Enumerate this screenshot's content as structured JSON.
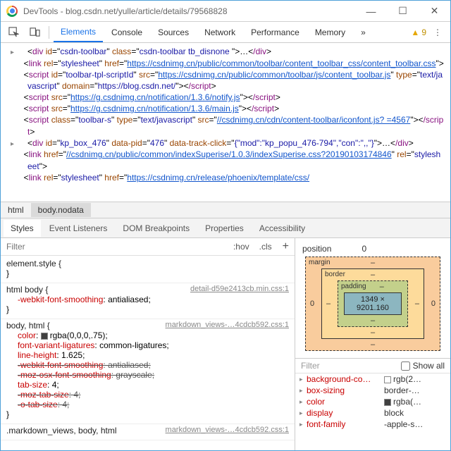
{
  "window": {
    "title": "DevTools - blog.csdn.net/yulle/article/details/79568828"
  },
  "winbtns": {
    "min": "—",
    "max": "☐",
    "close": "✕"
  },
  "maintabs": [
    "Elements",
    "Console",
    "Sources",
    "Network",
    "Performance",
    "Memory"
  ],
  "maintabs_more": "»",
  "warn_count": "9",
  "dom_lines": [
    {
      "tri": true,
      "html": "<<span class='p'>div</span> <span class='a'>id</span>=\"<span class='v'>csdn-toolbar</span>\" <span class='a'>class</span>=\"<span class='v'>csdn-toolbar tb_disnone</span> \">…<<span class='p'>/div</span>>"
    },
    {
      "tri": false,
      "html": "<<span class='p'>link</span> <span class='a'>rel</span>=\"<span class='v'>stylesheet</span>\" <span class='a'>href</span>=\"<span class='l'>https://csdnimg.cn/public/common/toolbar/content_toolbar_css/content_toolbar.css</span>\">"
    },
    {
      "tri": false,
      "html": "<<span class='p'>script</span> <span class='a'>id</span>=\"<span class='v'>toolbar-tpl-scriptId</span>\" <span class='a'>src</span>=\"<span class='l'>https://csdnimg.cn/public/common/toolbar/js/content_toolbar.js</span>\" <span class='a'>type</span>=\"<span class='v'>text/javascript</span>\" <span class='a'>domain</span>=\"<span class='v'>https://blog.csdn.net/</span>\"><<span class='p'>/script</span>>"
    },
    {
      "tri": false,
      "html": "<<span class='p'>script</span> <span class='a'>src</span>=\"<span class='l'>https://g.csdnimg.cn/notification/1.3.6/notify.js</span>\"><<span class='p'>/script</span>>"
    },
    {
      "tri": false,
      "html": "<<span class='p'>script</span> <span class='a'>src</span>=\"<span class='l'>https://g.csdnimg.cn/notification/1.3.6/main.js</span>\"><<span class='p'>/script</span>>"
    },
    {
      "tri": false,
      "html": "<<span class='p'>script</span> <span class='a'>class</span>=\"<span class='v'>toolbar-s</span>\" <span class='a'>type</span>=\"<span class='v'>text/javascript</span>\" <span class='a'>src</span>=\"<span class='l'>//csdnimg.cn/cdn/content-toolbar/iconfont.js? =4567</span>\"><<span class='p'>/script</span>>"
    },
    {
      "tri": true,
      "html": "<<span class='p'>div</span> <span class='a'>id</span>=\"<span class='v'>kp_box_476</span>\" <span class='a'>data-pid</span>=\"<span class='v'>476</span>\" <span class='a'>data-track-click</span>=\"<span class='v'>{\"mod\":\"kp_popu_476-794\",\"con\":\",,\"}</span>\">…<<span class='p'>/div</span>>"
    },
    {
      "tri": false,
      "html": "<<span class='p'>link</span> <span class='a'>href</span>=\"<span class='l'>//csdnimg.cn/public/common/indexSuperise/1.0.3/indexSuperise.css?20190103174846</span>\" <span class='a'>rel</span>=\"<span class='v'>stylesheet</span>\">"
    },
    {
      "tri": false,
      "html": "<<span class='p'>link</span> <span class='a'>rel</span>=\"<span class='v'>stylesheet</span>\" <span class='a'>href</span>=\"<span class='l'>https://csdnimg.cn/release/phoenix/template/css/</span>"
    }
  ],
  "crumbs": [
    "html",
    "body.nodata"
  ],
  "subtabs": [
    "Styles",
    "Event Listeners",
    "DOM Breakpoints",
    "Properties",
    "Accessibility"
  ],
  "styles": {
    "filter_placeholder": "Filter",
    "hov": ":hov",
    "cls": ".cls",
    "plus": "+",
    "rules": [
      {
        "sel": "element.style {",
        "src": "",
        "props": [],
        "close": "}"
      },
      {
        "sel": "html body {",
        "src": "detail-d59e2413cb.min.css:1",
        "props": [
          {
            "n": "-webkit-font-smoothing",
            "v": "antialiased;"
          }
        ],
        "close": "}"
      },
      {
        "sel": "body, html {",
        "src": "markdown_views-…4cdcb592.css:1",
        "props": [
          {
            "n": "color",
            "v": "rgba(0,0,0,.75);",
            "sw": "#404040"
          },
          {
            "n": "font-variant-ligatures",
            "v": "common-ligatures;"
          },
          {
            "n": "line-height",
            "v": "1.625;"
          },
          {
            "n": "-webkit-font-smoothing",
            "v": "antialiased;",
            "strike": true
          },
          {
            "n": "-moz-osx-font-smoothing",
            "v": "grayscale;",
            "strike": true
          },
          {
            "n": "tab-size",
            "v": "4;"
          },
          {
            "n": "-moz-tab-size",
            "v": "4;",
            "strike": true
          },
          {
            "n": "-o-tab-size",
            "v": "4;",
            "strike": true
          }
        ],
        "close": "}"
      },
      {
        "sel": ".markdown_views, body, html",
        "src": "markdown_views-…4cdcb592.css:1",
        "props": [],
        "close": ""
      }
    ]
  },
  "boxmodel": {
    "position_label": "position",
    "pos_top": "0",
    "margin_label": "margin",
    "border_label": "border",
    "padding_label": "padding",
    "content": "1349 × 9201.160",
    "dash": "–",
    "zero": "0"
  },
  "computed": {
    "filter": "Filter",
    "showall": "Show all",
    "rows": [
      {
        "k": "background-co…",
        "v": "rgb(2…",
        "sw": "#ffffff"
      },
      {
        "k": "box-sizing",
        "v": "border-…"
      },
      {
        "k": "color",
        "v": "rgba(…",
        "sw": "#404040"
      },
      {
        "k": "display",
        "v": "block"
      },
      {
        "k": "font-family",
        "v": "-apple-s…"
      }
    ]
  }
}
